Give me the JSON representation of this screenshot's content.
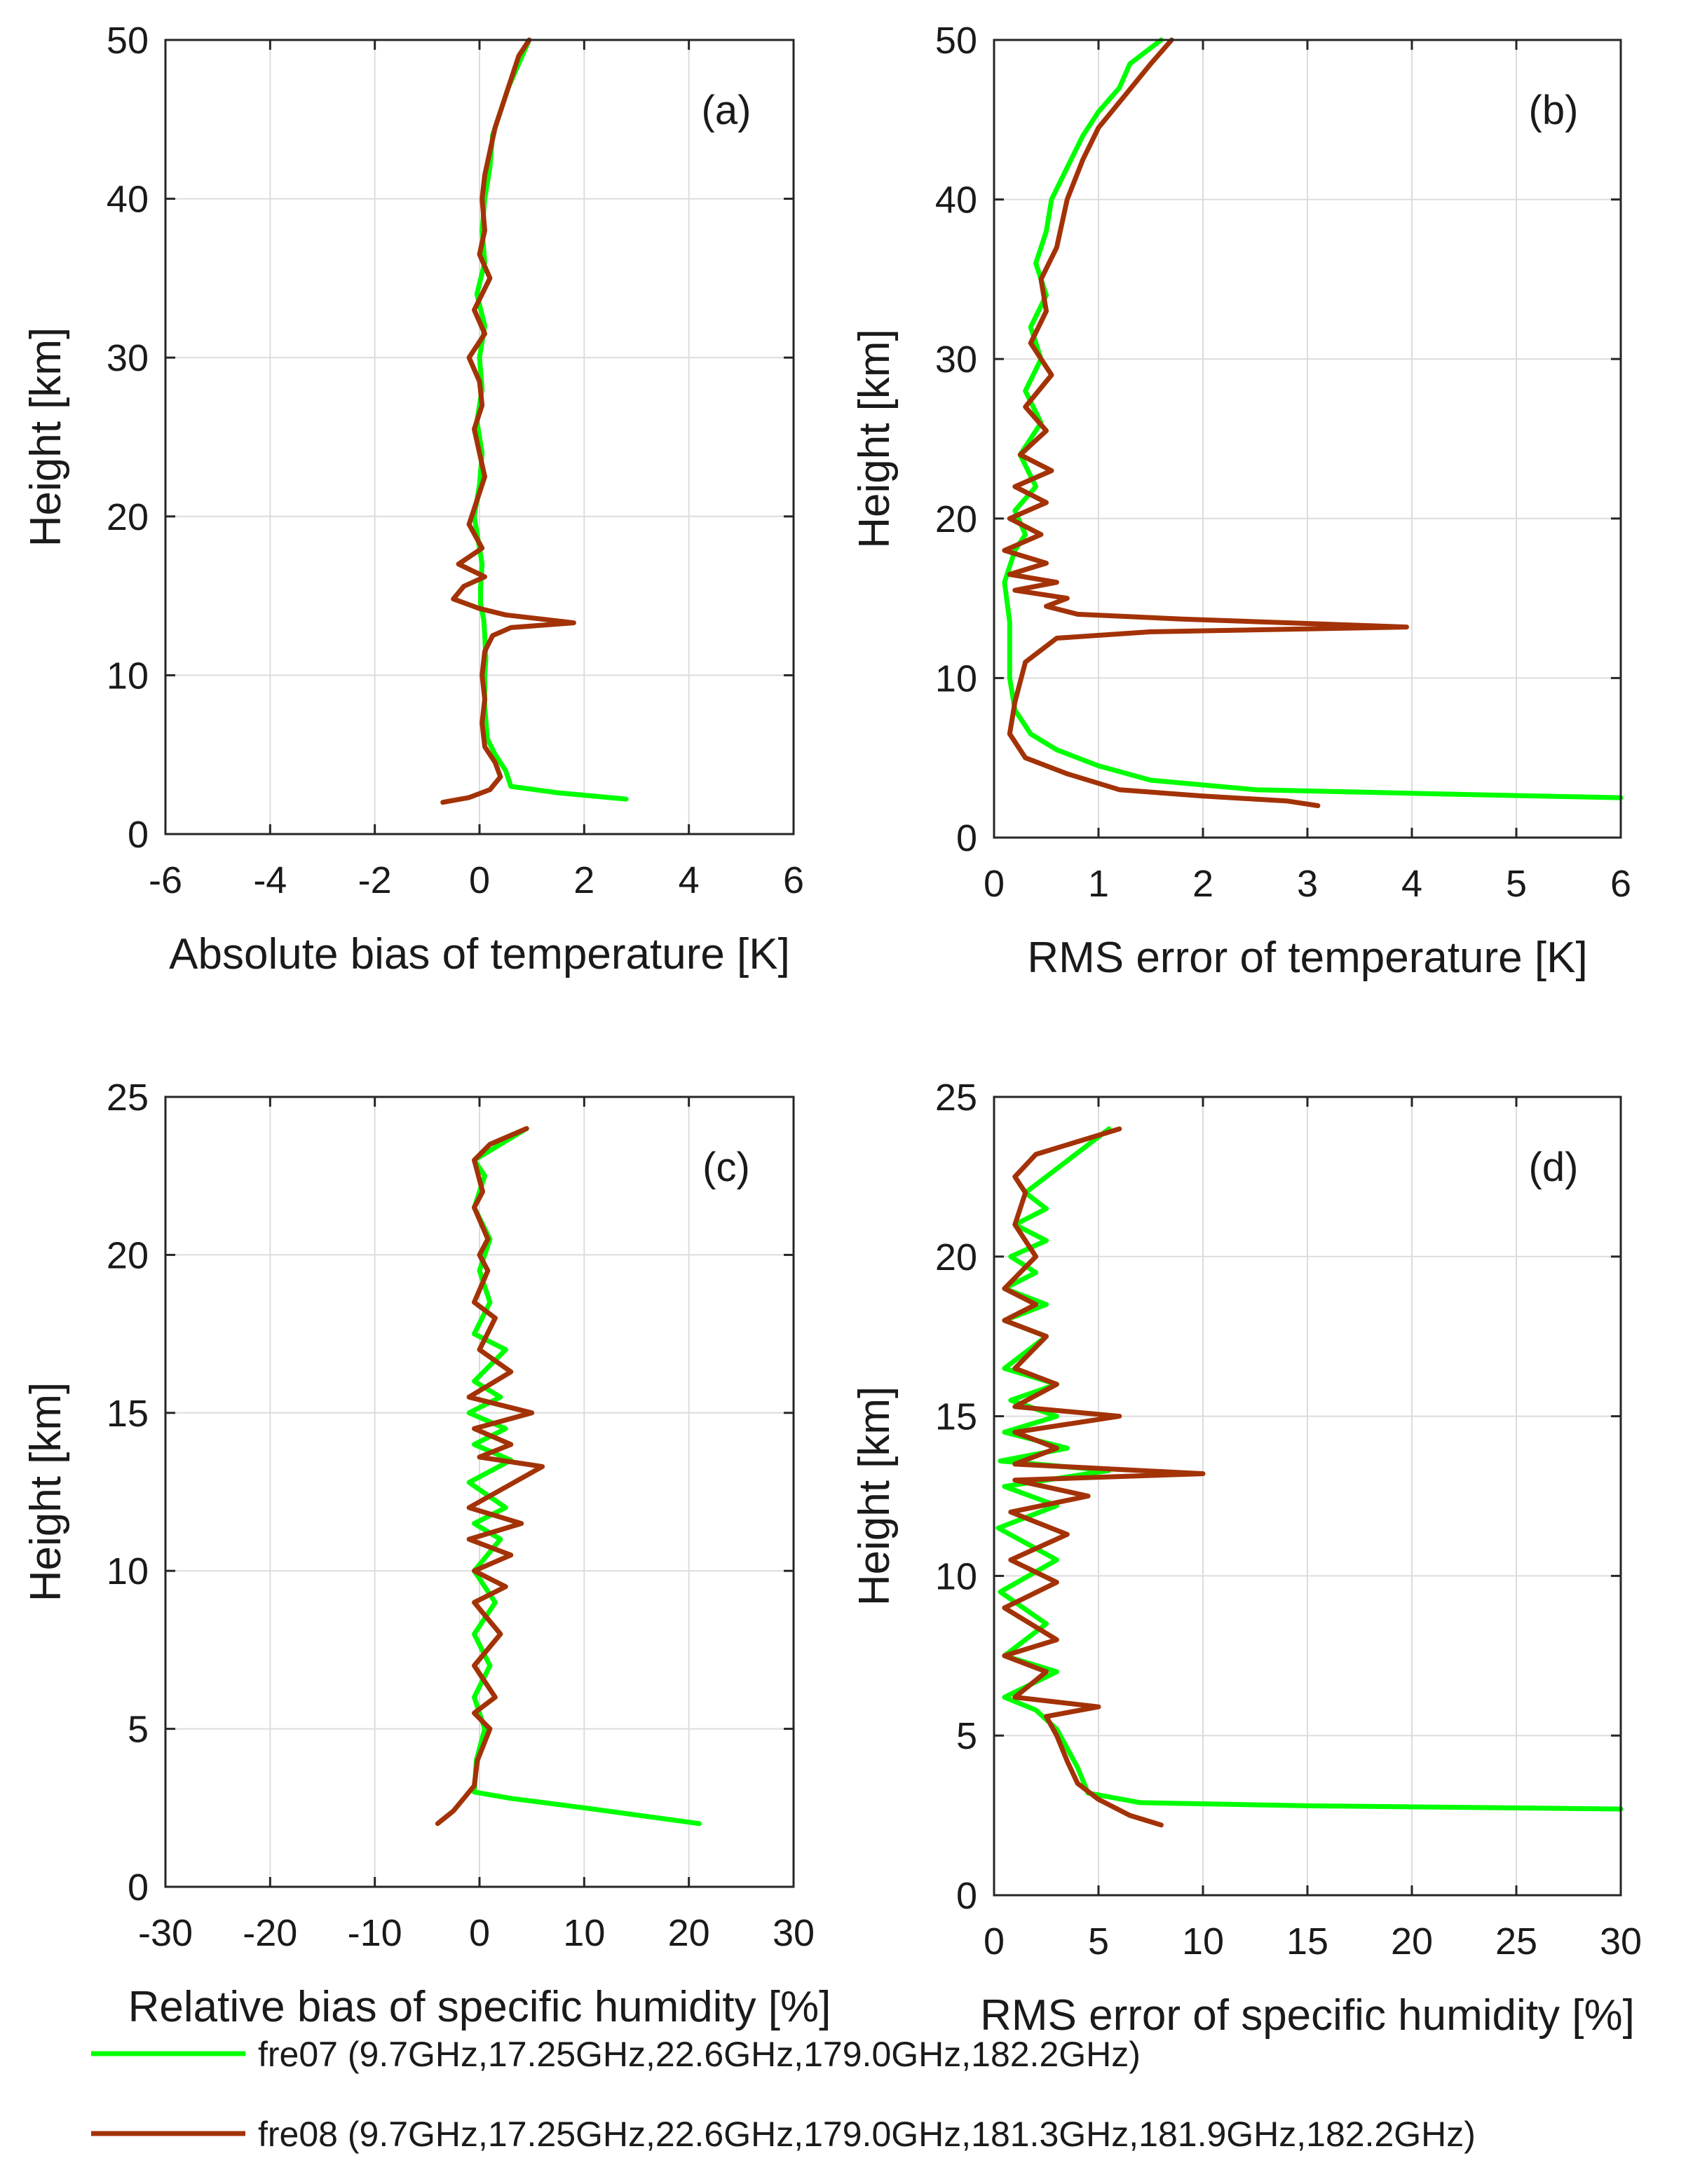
{
  "chart_data": [
    {
      "id": "a",
      "type": "line",
      "panel_label": "(a)",
      "xlabel": "Absolute bias of temperature [K]",
      "ylabel": "Height [km]",
      "xlim": [
        -6,
        6
      ],
      "ylim": [
        0,
        50
      ],
      "xticks": [
        "-6",
        "-4",
        "-2",
        "0",
        "2",
        "4",
        "6"
      ],
      "yticks": [
        "0",
        "10",
        "20",
        "30",
        "40",
        "50"
      ],
      "grid": true,
      "series": [
        {
          "name": "fre07",
          "color": "#00ff00",
          "x": [
            2.8,
            1.5,
            0.6,
            0.5,
            0.3,
            0.15,
            0.1,
            0.1,
            0.12,
            0.1,
            0.08,
            0.02,
            0.02,
            0.05,
            0.0,
            -0.1,
            0.0,
            0.05,
            -0.05,
            0.05,
            0.0,
            0.1,
            -0.05,
            0.1,
            0.05,
            0.1,
            0.2,
            0.25,
            0.4,
            0.55,
            0.75,
            0.95
          ],
          "y": [
            2.2,
            2.6,
            3.0,
            4.0,
            5.0,
            6.0,
            8.0,
            10.0,
            11.0,
            12.5,
            13.5,
            14.5,
            15.5,
            17.0,
            18.0,
            20.0,
            22.0,
            24.0,
            26.0,
            28.0,
            30.0,
            32.0,
            34.0,
            36.0,
            38.0,
            40.0,
            42.0,
            44.0,
            45.5,
            47.0,
            48.5,
            50.0
          ]
        },
        {
          "name": "fre08",
          "color": "#a33207",
          "x": [
            -0.7,
            -0.2,
            0.2,
            0.4,
            0.3,
            0.1,
            0.05,
            0.1,
            0.05,
            0.1,
            0.25,
            0.6,
            1.8,
            0.5,
            0.0,
            -0.5,
            -0.3,
            0.1,
            -0.4,
            0.05,
            -0.2,
            -0.05,
            0.1,
            0.0,
            -0.1,
            0.05,
            0.0,
            -0.2,
            0.1,
            -0.1,
            0.2,
            0.0,
            0.1,
            0.05,
            0.1,
            0.2,
            0.3,
            0.45,
            0.6,
            0.75,
            0.95
          ],
          "y": [
            2.0,
            2.3,
            2.8,
            3.6,
            4.5,
            5.5,
            7.0,
            8.5,
            10.0,
            11.5,
            12.5,
            13.0,
            13.3,
            13.8,
            14.2,
            14.8,
            15.6,
            16.2,
            17.0,
            18.0,
            19.5,
            21.0,
            22.5,
            24.0,
            25.5,
            27.0,
            28.5,
            30.0,
            31.5,
            33.0,
            35.0,
            36.5,
            38.0,
            40.0,
            41.5,
            43.0,
            44.5,
            46.0,
            47.5,
            49.0,
            50.0
          ]
        }
      ]
    },
    {
      "id": "b",
      "type": "line",
      "panel_label": "(b)",
      "xlabel": "RMS error of temperature [K]",
      "ylabel": "Height [km]",
      "xlim": [
        0,
        6
      ],
      "ylim": [
        0,
        50
      ],
      "xticks": [
        "0",
        "1",
        "2",
        "3",
        "4",
        "5",
        "6"
      ],
      "yticks": [
        "0",
        "10",
        "20",
        "30",
        "40",
        "50"
      ],
      "grid": true,
      "series": [
        {
          "name": "fre07",
          "color": "#00ff00",
          "x": [
            6.0,
            4.5,
            2.5,
            1.5,
            1.0,
            0.6,
            0.35,
            0.2,
            0.15,
            0.15,
            0.15,
            0.12,
            0.1,
            0.15,
            0.2,
            0.3,
            0.2,
            0.4,
            0.25,
            0.45,
            0.3,
            0.45,
            0.35,
            0.5,
            0.4,
            0.5,
            0.55,
            0.7,
            0.85,
            1.0,
            1.2,
            1.3,
            1.6
          ],
          "y": [
            2.5,
            2.7,
            3.0,
            3.6,
            4.5,
            5.5,
            6.5,
            8.0,
            10.0,
            12.0,
            13.5,
            15.0,
            16.0,
            17.0,
            18.0,
            19.0,
            20.5,
            22.0,
            24.0,
            26.0,
            28.0,
            30.0,
            32.0,
            34.0,
            36.0,
            38.0,
            40.0,
            42.0,
            44.0,
            45.5,
            47.0,
            48.5,
            50.0
          ]
        },
        {
          "name": "fre08",
          "color": "#a33207",
          "x": [
            3.1,
            2.8,
            2.0,
            1.2,
            0.7,
            0.3,
            0.15,
            0.2,
            0.3,
            0.6,
            1.5,
            3.95,
            1.8,
            0.8,
            0.5,
            0.7,
            0.2,
            0.6,
            0.15,
            0.5,
            0.1,
            0.45,
            0.15,
            0.5,
            0.2,
            0.55,
            0.25,
            0.5,
            0.3,
            0.55,
            0.35,
            0.5,
            0.45,
            0.6,
            0.7,
            0.85,
            1.0,
            1.25,
            1.5,
            1.7
          ],
          "y": [
            2.0,
            2.3,
            2.6,
            3.0,
            4.0,
            5.0,
            6.5,
            8.5,
            11.0,
            12.5,
            12.9,
            13.2,
            13.7,
            14.0,
            14.5,
            15.0,
            15.5,
            16.0,
            16.5,
            17.2,
            18.0,
            19.0,
            20.0,
            21.0,
            22.0,
            23.0,
            24.0,
            25.5,
            27.0,
            29.0,
            31.0,
            33.0,
            35.0,
            37.0,
            40.0,
            42.5,
            44.5,
            46.5,
            48.5,
            50.0
          ]
        }
      ]
    },
    {
      "id": "c",
      "type": "line",
      "panel_label": "(c)",
      "xlabel": "Relative bias of specific humidity [%]",
      "ylabel": "Height [km]",
      "xlim": [
        -30,
        30
      ],
      "ylim": [
        0,
        25
      ],
      "xticks": [
        "-30",
        "-20",
        "-10",
        "0",
        "10",
        "20",
        "30"
      ],
      "yticks": [
        "0",
        "5",
        "10",
        "15",
        "20",
        "25"
      ],
      "grid": true,
      "series": [
        {
          "name": "fre07",
          "color": "#00ff00",
          "x": [
            21.0,
            10.0,
            3.0,
            -0.5,
            -0.3,
            0.5,
            -0.5,
            1.0,
            -0.5,
            1.5,
            -0.5,
            2.0,
            -0.5,
            2.5,
            -1.0,
            3.0,
            -0.5,
            2.5,
            -1.0,
            2.0,
            -0.5,
            2.5,
            -0.5,
            1.0,
            0.0,
            1.0,
            -0.5,
            0.5,
            -0.5,
            2.0,
            4.5
          ],
          "y": [
            2.0,
            2.5,
            2.8,
            3.0,
            4.0,
            5.0,
            6.0,
            7.0,
            8.0,
            9.0,
            10.0,
            11.0,
            11.5,
            12.0,
            12.8,
            13.5,
            14.0,
            14.5,
            15.0,
            15.5,
            16.0,
            17.0,
            17.5,
            18.5,
            19.5,
            20.5,
            21.5,
            22.5,
            23.0,
            23.5,
            24.0
          ]
        },
        {
          "name": "fre08",
          "color": "#a33207",
          "x": [
            -4.0,
            -2.5,
            -1.5,
            -0.5,
            -0.2,
            1.0,
            -0.5,
            1.5,
            -0.5,
            2.0,
            -0.5,
            2.5,
            -0.5,
            3.0,
            -1.0,
            4.0,
            -1.0,
            6.0,
            0.0,
            3.0,
            -0.5,
            5.0,
            -1.0,
            3.0,
            0.0,
            1.5,
            -0.5,
            0.8,
            0.0,
            0.8,
            -0.5,
            0.3,
            -0.5,
            1.0,
            4.5
          ],
          "y": [
            2.0,
            2.4,
            2.8,
            3.2,
            4.0,
            5.0,
            5.5,
            6.0,
            7.0,
            8.0,
            9.0,
            9.5,
            10.0,
            10.5,
            11.0,
            11.5,
            12.0,
            13.3,
            13.6,
            14.0,
            14.5,
            15.0,
            15.5,
            16.3,
            17.0,
            18.0,
            18.5,
            19.5,
            20.0,
            20.5,
            21.5,
            22.0,
            23.0,
            23.5,
            24.0
          ]
        }
      ]
    },
    {
      "id": "d",
      "type": "line",
      "panel_label": "(d)",
      "xlabel": "RMS error of specific humidity [%]",
      "ylabel": "Height [km]",
      "xlim": [
        0,
        30
      ],
      "ylim": [
        0,
        25
      ],
      "xticks": [
        "0",
        "5",
        "10",
        "15",
        "20",
        "25",
        "30"
      ],
      "yticks": [
        "0",
        "5",
        "10",
        "15",
        "20",
        "25"
      ],
      "grid": true,
      "series": [
        {
          "name": "fre07",
          "color": "#00ff00",
          "x": [
            30.0,
            15.0,
            7.0,
            4.5,
            4.0,
            3.5,
            3.0,
            2.0,
            0.5,
            3.0,
            0.5,
            2.5,
            0.3,
            3.0,
            0.2,
            3.0,
            0.5,
            5.5,
            0.3,
            3.5,
            0.5,
            3.0,
            0.8,
            3.0,
            0.5,
            2.5,
            0.5,
            2.5,
            0.5,
            2.0,
            0.8,
            2.5,
            1.0,
            2.5,
            1.5,
            3.5,
            5.5
          ],
          "y": [
            2.7,
            2.8,
            2.9,
            3.2,
            4.0,
            4.6,
            5.2,
            5.8,
            6.2,
            7.0,
            7.5,
            8.5,
            9.5,
            10.5,
            11.5,
            12.2,
            12.8,
            13.3,
            13.6,
            14.0,
            14.5,
            15.0,
            15.5,
            16.0,
            16.5,
            17.5,
            18.0,
            18.5,
            19.0,
            19.5,
            20.0,
            20.5,
            21.0,
            21.5,
            22.0,
            23.0,
            24.0
          ]
        },
        {
          "name": "fre08",
          "color": "#a33207",
          "x": [
            8.0,
            6.5,
            5.0,
            4.0,
            3.5,
            3.0,
            2.5,
            5.0,
            1.0,
            2.5,
            0.5,
            3.0,
            0.5,
            3.0,
            0.8,
            3.5,
            0.8,
            4.5,
            1.0,
            10.0,
            1.0,
            3.0,
            1.0,
            6.0,
            1.0,
            3.0,
            1.0,
            2.5,
            0.5,
            2.0,
            0.5,
            2.0,
            1.0,
            1.5,
            1.0,
            2.0,
            6.0
          ],
          "y": [
            2.2,
            2.5,
            3.0,
            3.5,
            4.2,
            5.0,
            5.6,
            5.9,
            6.2,
            7.0,
            7.5,
            8.0,
            9.0,
            9.8,
            10.5,
            11.3,
            12.0,
            12.5,
            13.0,
            13.2,
            13.5,
            14.0,
            14.5,
            15.0,
            15.3,
            16.0,
            16.5,
            17.5,
            18.0,
            18.5,
            19.0,
            20.0,
            21.0,
            22.0,
            22.5,
            23.2,
            24.0
          ]
        }
      ]
    }
  ],
  "legend": {
    "entries": [
      {
        "series": "fre07",
        "label": "fre07 (9.7GHz,17.25GHz,22.6GHz,179.0GHz,182.2GHz)",
        "color": "#00ff00"
      },
      {
        "series": "fre08",
        "label": "fre08 (9.7GHz,17.25GHz,22.6GHz,179.0GHz,181.3GHz,181.9GHz,182.2GHz)",
        "color": "#a33207"
      }
    ]
  }
}
